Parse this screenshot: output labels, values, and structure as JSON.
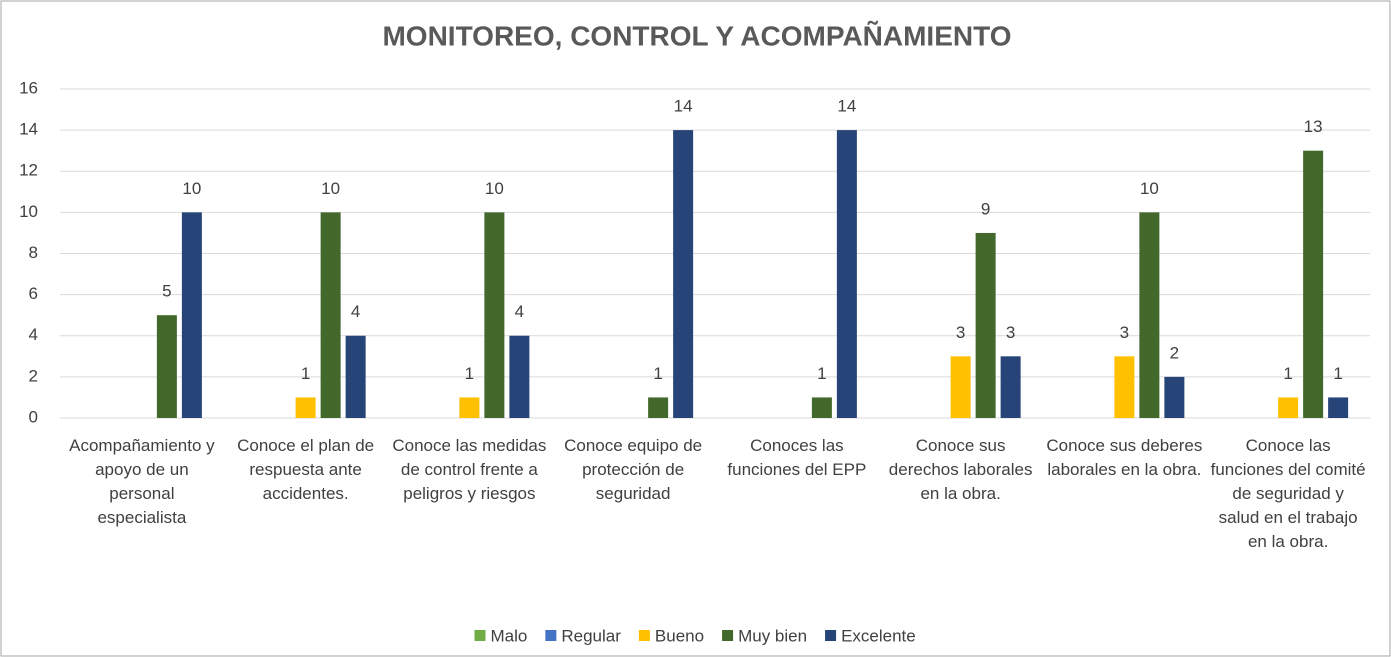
{
  "chart_data": {
    "type": "bar",
    "title": "MONITOREO, CONTROL Y ACOMPAÑAMIENTO",
    "categories": [
      "Acompañamiento y apoyo de un personal especialista",
      "Conoce el plan de respuesta ante accidentes.",
      "Conoce las medidas de control frente a peligros y riesgos",
      "Conoce equipo de protección de seguridad",
      "Conoces las funciones del EPP",
      "Conoce sus derechos laborales en la obra.",
      "Conoce sus deberes laborales en la obra.",
      "Conoce las funciones del comité de seguridad y salud en el trabajo en la obra."
    ],
    "series": [
      {
        "name": "Malo",
        "color": "#70ad47",
        "values": [
          null,
          null,
          null,
          null,
          null,
          null,
          null,
          null
        ]
      },
      {
        "name": "Regular",
        "color": "#4472c4",
        "values": [
          null,
          null,
          null,
          null,
          null,
          null,
          null,
          null
        ]
      },
      {
        "name": "Bueno",
        "color": "#ffc000",
        "values": [
          null,
          1,
          1,
          null,
          null,
          3,
          3,
          1
        ]
      },
      {
        "name": "Muy bien",
        "color": "#43682b",
        "values": [
          5,
          10,
          10,
          1,
          1,
          9,
          10,
          13
        ]
      },
      {
        "name": "Excelente",
        "color": "#264478",
        "values": [
          10,
          4,
          4,
          14,
          14,
          3,
          2,
          1
        ]
      }
    ],
    "ylim": [
      0,
      16
    ],
    "yticks": [
      0,
      2,
      4,
      6,
      8,
      10,
      12,
      14,
      16
    ],
    "grid": true,
    "legend": "bottom"
  }
}
